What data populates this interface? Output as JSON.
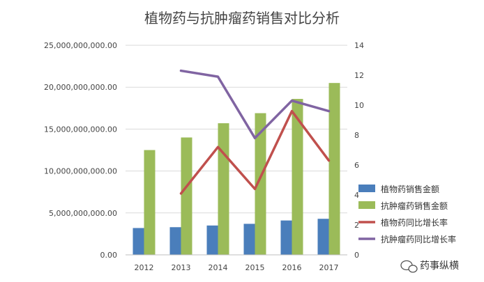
{
  "chart_data": {
    "type": "bar",
    "title": "植物药与抗肿瘤药销售对比分析",
    "categories": [
      "2012",
      "2013",
      "2014",
      "2015",
      "2016",
      "2017"
    ],
    "y_left": {
      "ylim": [
        0,
        25000000000
      ],
      "ticks": [
        "0.00",
        "5,000,000,000.00",
        "10,000,000,000.00",
        "15,000,000,000.00",
        "20,000,000,000.00",
        "25,000,000,000.00"
      ],
      "tick_values": [
        0,
        5000000000,
        10000000000,
        15000000000,
        20000000000,
        25000000000
      ]
    },
    "y_right": {
      "ylim": [
        0,
        14
      ],
      "ticks": [
        "0",
        "2",
        "4",
        "6",
        "8",
        "10",
        "12",
        "14"
      ],
      "tick_values": [
        0,
        2,
        4,
        6,
        8,
        10,
        12,
        14
      ]
    },
    "grid": true,
    "legend_position": "right",
    "series": [
      {
        "name": "植物药销售金额",
        "kind": "bar",
        "axis": "left",
        "color": "#4a7ebb",
        "values": [
          3200000000,
          3300000000,
          3500000000,
          3700000000,
          4100000000,
          4300000000
        ]
      },
      {
        "name": "抗肿瘤药销售金额",
        "kind": "bar",
        "axis": "left",
        "color": "#9bbb59",
        "values": [
          12500000000,
          14000000000,
          15700000000,
          16900000000,
          18600000000,
          20500000000
        ]
      },
      {
        "name": "植物药同比增长率",
        "kind": "line",
        "axis": "right",
        "color": "#c0504d",
        "values": [
          null,
          4.1,
          7.2,
          4.4,
          9.6,
          6.3
        ]
      },
      {
        "name": "抗肿瘤药同比增长率",
        "kind": "line",
        "axis": "right",
        "color": "#8064a2",
        "values": [
          null,
          12.3,
          11.9,
          7.8,
          10.3,
          9.6
        ]
      }
    ]
  },
  "watermark": {
    "text": "药事纵横",
    "icon": "wechat-icon"
  }
}
